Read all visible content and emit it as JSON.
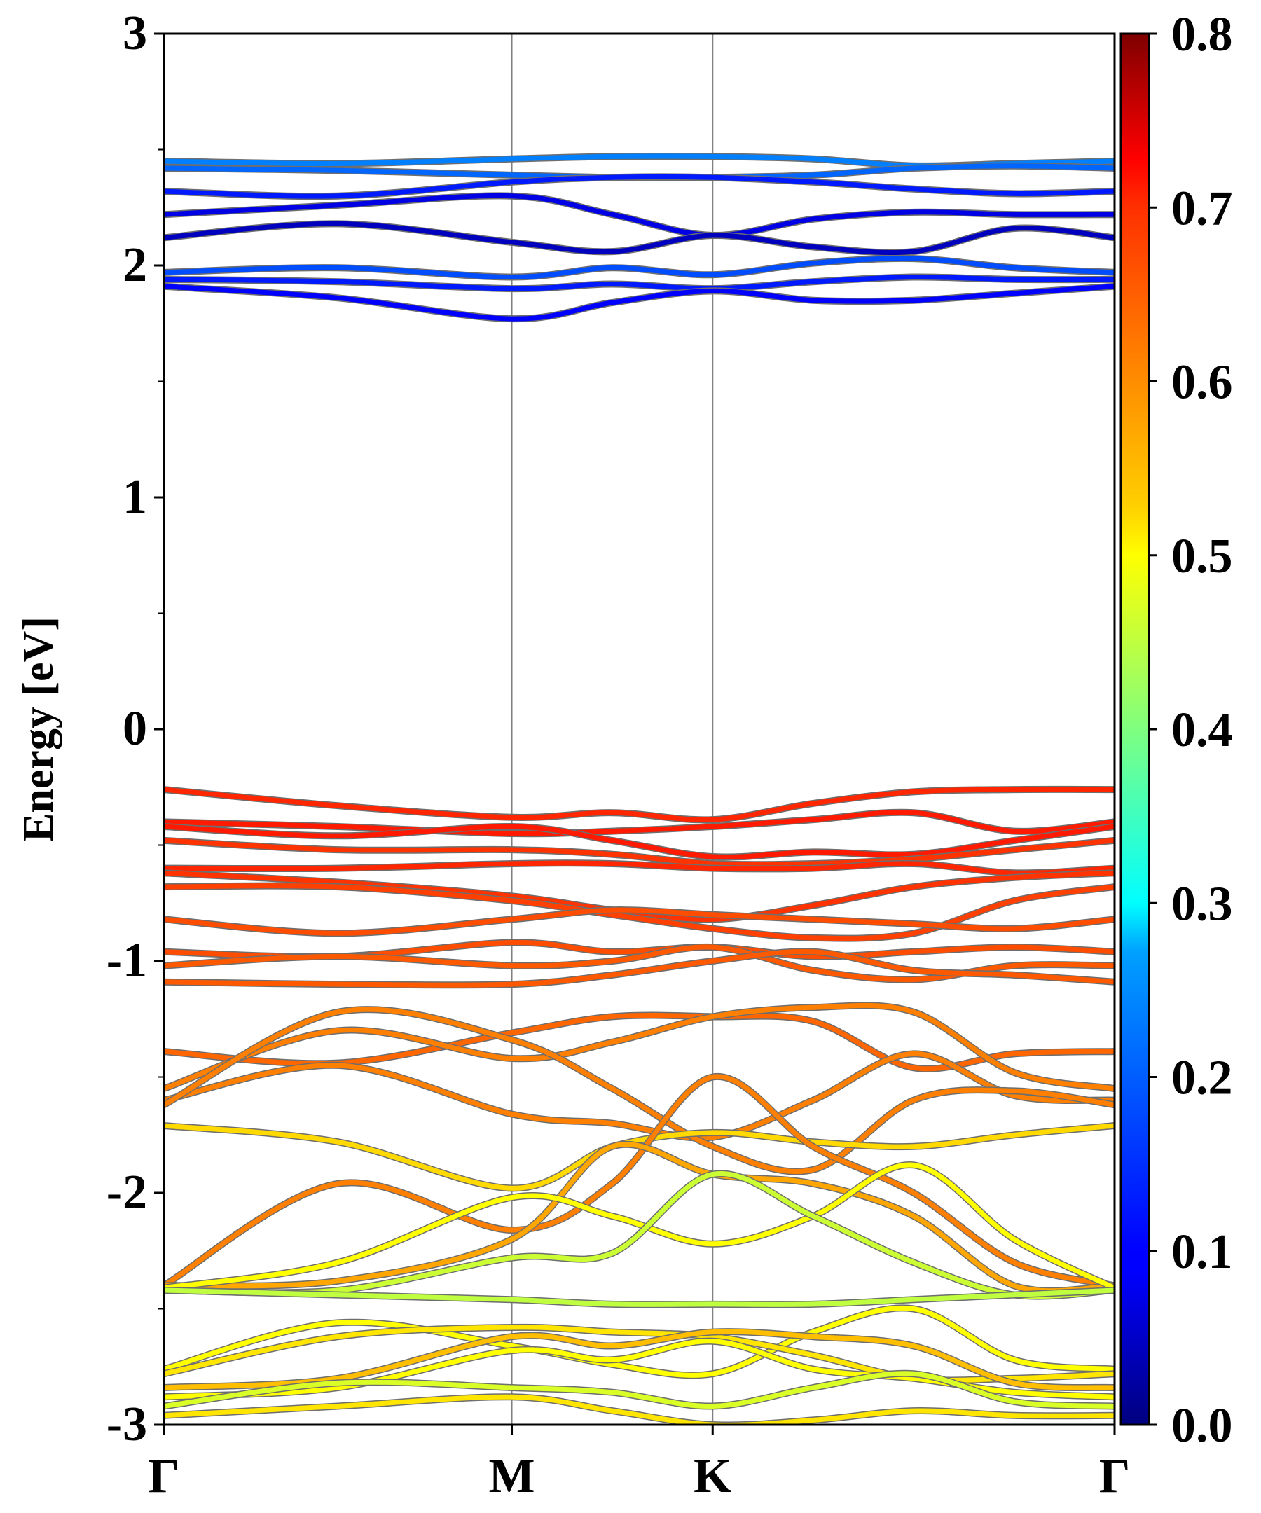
{
  "chart_data": {
    "type": "line",
    "title": "",
    "ylabel": "Energy [eV]",
    "xlabel": "",
    "ylim": [
      -3,
      3
    ],
    "ytick_values": [
      -3,
      -2,
      -1,
      0,
      1,
      2,
      3
    ],
    "ytick_labels": [
      "-3",
      "-2",
      "-1",
      "0",
      "1",
      "2",
      "3"
    ],
    "x_path": [
      {
        "label": "Γ",
        "position": 0.0
      },
      {
        "label": "M",
        "position": 0.3659
      },
      {
        "label": "K",
        "position": 0.5772
      },
      {
        "label": "Γ",
        "position": 1.0
      }
    ],
    "grid": false,
    "colorbar": {
      "colormap": "jet",
      "min": 0.0,
      "max": 0.8,
      "tick_values": [
        0.0,
        0.1,
        0.2,
        0.3,
        0.4,
        0.5,
        0.6,
        0.7,
        0.8
      ],
      "tick_labels": [
        "0.0",
        "0.1",
        "0.2",
        "0.3",
        "0.4",
        "0.5",
        "0.6",
        "0.7",
        "0.8"
      ]
    },
    "series_note_x": "energies sampled at Γ, 0.5·ΓM, M, 0.5·MK, K, 0.25·KΓ, 0.5·KΓ, 0.75·KΓ, Γ",
    "series": [
      {
        "energies": [
          2.45,
          2.44,
          2.46,
          2.47,
          2.47,
          2.46,
          2.43,
          2.44,
          2.45
        ],
        "weight": 0.2
      },
      {
        "energies": [
          2.42,
          2.41,
          2.39,
          2.38,
          2.38,
          2.39,
          2.42,
          2.43,
          2.42
        ],
        "weight": 0.18
      },
      {
        "energies": [
          2.32,
          2.3,
          2.36,
          2.38,
          2.38,
          2.36,
          2.33,
          2.31,
          2.32
        ],
        "weight": 0.12
      },
      {
        "energies": [
          2.22,
          2.26,
          2.3,
          2.22,
          2.13,
          2.2,
          2.23,
          2.22,
          2.22
        ],
        "weight": 0.08
      },
      {
        "energies": [
          2.12,
          2.18,
          2.1,
          2.06,
          2.13,
          2.08,
          2.06,
          2.16,
          2.12
        ],
        "weight": 0.05
      },
      {
        "energies": [
          1.97,
          1.99,
          1.95,
          1.99,
          1.96,
          2.01,
          2.03,
          1.99,
          1.97
        ],
        "weight": 0.16
      },
      {
        "energies": [
          1.94,
          1.93,
          1.9,
          1.92,
          1.9,
          1.93,
          1.95,
          1.94,
          1.94
        ],
        "weight": 0.12
      },
      {
        "energies": [
          1.91,
          1.86,
          1.77,
          1.84,
          1.89,
          1.85,
          1.85,
          1.88,
          1.91
        ],
        "weight": 0.1
      },
      {
        "energies": [
          -0.26,
          -0.33,
          -0.38,
          -0.36,
          -0.39,
          -0.32,
          -0.27,
          -0.26,
          -0.26
        ],
        "weight": 0.67
      },
      {
        "energies": [
          -0.4,
          -0.42,
          -0.45,
          -0.44,
          -0.42,
          -0.39,
          -0.36,
          -0.44,
          -0.4
        ],
        "weight": 0.68
      },
      {
        "energies": [
          -0.42,
          -0.46,
          -0.42,
          -0.48,
          -0.55,
          -0.53,
          -0.54,
          -0.48,
          -0.42
        ],
        "weight": 0.68
      },
      {
        "energies": [
          -0.48,
          -0.52,
          -0.52,
          -0.54,
          -0.58,
          -0.58,
          -0.56,
          -0.52,
          -0.48
        ],
        "weight": 0.66
      },
      {
        "energies": [
          -0.6,
          -0.6,
          -0.58,
          -0.58,
          -0.6,
          -0.6,
          -0.58,
          -0.62,
          -0.6
        ],
        "weight": 0.67
      },
      {
        "energies": [
          -0.62,
          -0.66,
          -0.72,
          -0.78,
          -0.82,
          -0.76,
          -0.68,
          -0.64,
          -0.62
        ],
        "weight": 0.66
      },
      {
        "energies": [
          -0.68,
          -0.68,
          -0.74,
          -0.8,
          -0.86,
          -0.9,
          -0.88,
          -0.74,
          -0.68
        ],
        "weight": 0.65
      },
      {
        "energies": [
          -0.82,
          -0.88,
          -0.82,
          -0.78,
          -0.8,
          -0.82,
          -0.84,
          -0.86,
          -0.82
        ],
        "weight": 0.64
      },
      {
        "energies": [
          -0.96,
          -0.98,
          -0.92,
          -0.96,
          -0.94,
          -0.98,
          -0.96,
          -0.94,
          -0.96
        ],
        "weight": 0.64
      },
      {
        "energies": [
          -1.02,
          -0.98,
          -1.02,
          -1.0,
          -0.94,
          -1.04,
          -1.08,
          -1.02,
          -1.02
        ],
        "weight": 0.63
      },
      {
        "energies": [
          -1.09,
          -1.1,
          -1.1,
          -1.06,
          -1.0,
          -0.96,
          -1.04,
          -1.06,
          -1.09
        ],
        "weight": 0.63
      },
      {
        "energies": [
          -1.39,
          -1.44,
          -1.31,
          -1.24,
          -1.24,
          -1.26,
          -1.46,
          -1.4,
          -1.39
        ],
        "weight": 0.62
      },
      {
        "energies": [
          -1.55,
          -1.3,
          -1.42,
          -1.35,
          -1.24,
          -1.2,
          -1.22,
          -1.48,
          -1.55
        ],
        "weight": 0.6
      },
      {
        "energies": [
          -1.6,
          -1.45,
          -1.66,
          -1.7,
          -1.76,
          -1.6,
          -1.4,
          -1.58,
          -1.6
        ],
        "weight": 0.6
      },
      {
        "energies": [
          -1.62,
          -1.22,
          -1.34,
          -1.55,
          -1.8,
          -1.9,
          -1.6,
          -1.56,
          -1.62
        ],
        "weight": 0.6
      },
      {
        "energies": [
          -1.71,
          -1.78,
          -1.98,
          -1.8,
          -1.74,
          -1.78,
          -1.8,
          -1.75,
          -1.71
        ],
        "weight": 0.53
      },
      {
        "energies": [
          -2.4,
          -1.96,
          -2.16,
          -1.96,
          -1.5,
          -1.8,
          -2.0,
          -2.3,
          -2.4
        ],
        "weight": 0.6
      },
      {
        "energies": [
          -2.4,
          -2.38,
          -2.2,
          -1.8,
          -1.92,
          -1.96,
          -2.1,
          -2.4,
          -2.4
        ],
        "weight": 0.57
      },
      {
        "energies": [
          -2.41,
          -2.3,
          -2.02,
          -2.1,
          -2.22,
          -2.1,
          -1.88,
          -2.2,
          -2.41
        ],
        "weight": 0.5
      },
      {
        "energies": [
          -2.42,
          -2.42,
          -2.28,
          -2.26,
          -1.92,
          -2.1,
          -2.3,
          -2.44,
          -2.42
        ],
        "weight": 0.46
      },
      {
        "energies": [
          -2.42,
          -2.44,
          -2.46,
          -2.48,
          -2.48,
          -2.48,
          -2.46,
          -2.44,
          -2.42
        ],
        "weight": 0.45
      },
      {
        "energies": [
          -2.76,
          -2.56,
          -2.66,
          -2.74,
          -2.78,
          -2.6,
          -2.5,
          -2.72,
          -2.76
        ],
        "weight": 0.5
      },
      {
        "energies": [
          -2.78,
          -2.62,
          -2.58,
          -2.6,
          -2.62,
          -2.7,
          -2.8,
          -2.8,
          -2.78
        ],
        "weight": 0.52
      },
      {
        "energies": [
          -2.84,
          -2.8,
          -2.62,
          -2.66,
          -2.6,
          -2.62,
          -2.66,
          -2.82,
          -2.84
        ],
        "weight": 0.55
      },
      {
        "energies": [
          -2.88,
          -2.84,
          -2.68,
          -2.72,
          -2.64,
          -2.76,
          -2.8,
          -2.86,
          -2.88
        ],
        "weight": 0.5
      },
      {
        "energies": [
          -2.92,
          -2.82,
          -2.84,
          -2.86,
          -2.92,
          -2.84,
          -2.78,
          -2.9,
          -2.92
        ],
        "weight": 0.47
      },
      {
        "energies": [
          -2.96,
          -2.92,
          -2.88,
          -2.94,
          -3.0,
          -2.98,
          -2.94,
          -2.96,
          -2.96
        ],
        "weight": 0.52
      }
    ]
  }
}
